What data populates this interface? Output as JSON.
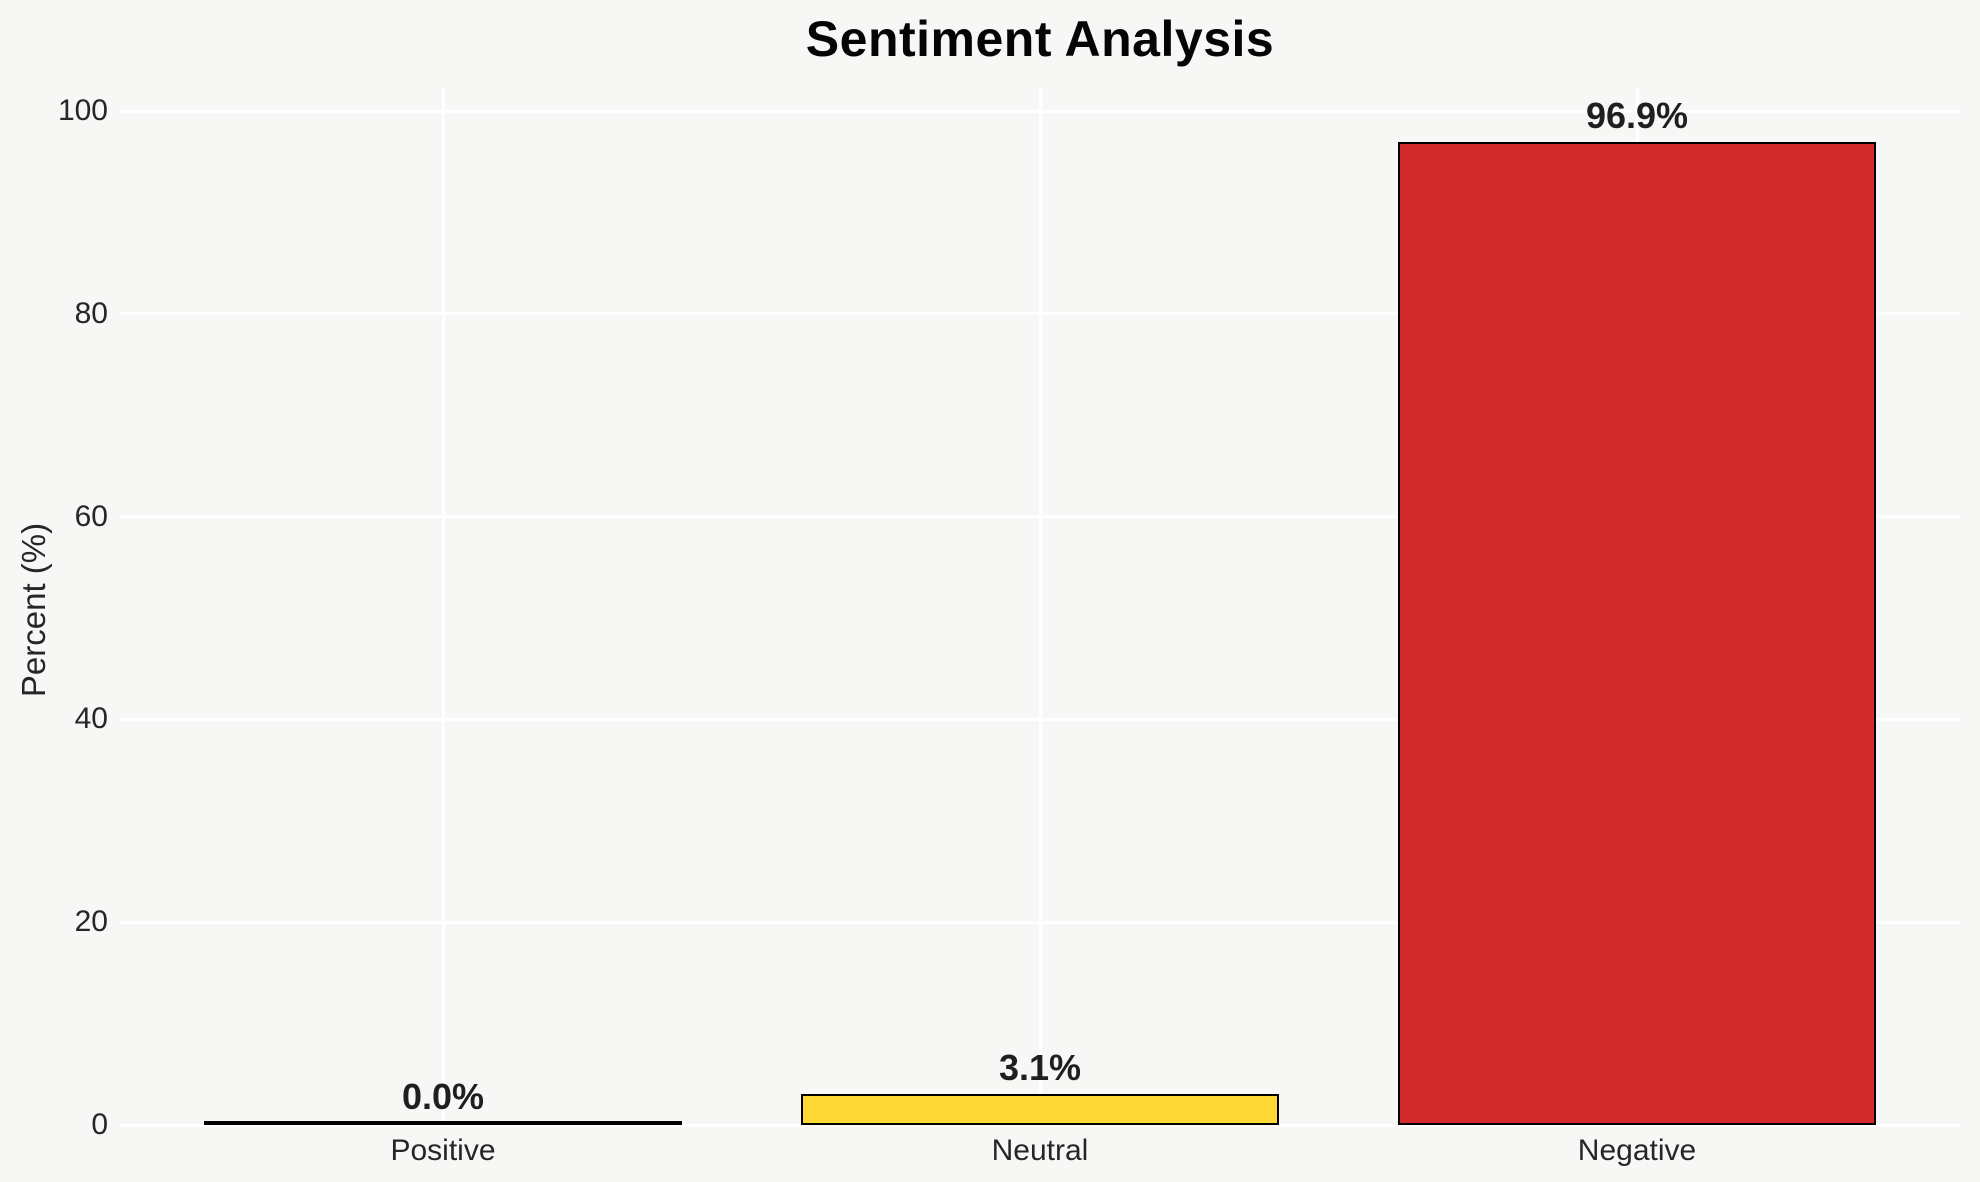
{
  "chart_data": {
    "type": "bar",
    "title": "Sentiment Analysis",
    "xlabel": "",
    "ylabel": "Percent (%)",
    "categories": [
      "Positive",
      "Neutral",
      "Negative"
    ],
    "values": [
      0.0,
      3.1,
      96.9
    ],
    "value_labels": [
      "0.0%",
      "3.1%",
      "96.9%"
    ],
    "bar_colors": [
      "#000000",
      "#fdd835",
      "#d32b2b"
    ],
    "bar_edge_color": "#000000",
    "ylim": [
      0,
      100
    ],
    "yticks": [
      0,
      20,
      40,
      60,
      80,
      100
    ],
    "grid": true,
    "gridline_color": "#ffffff",
    "background_color": "#f7f7f6",
    "text_color": "#262626",
    "legend": null
  }
}
